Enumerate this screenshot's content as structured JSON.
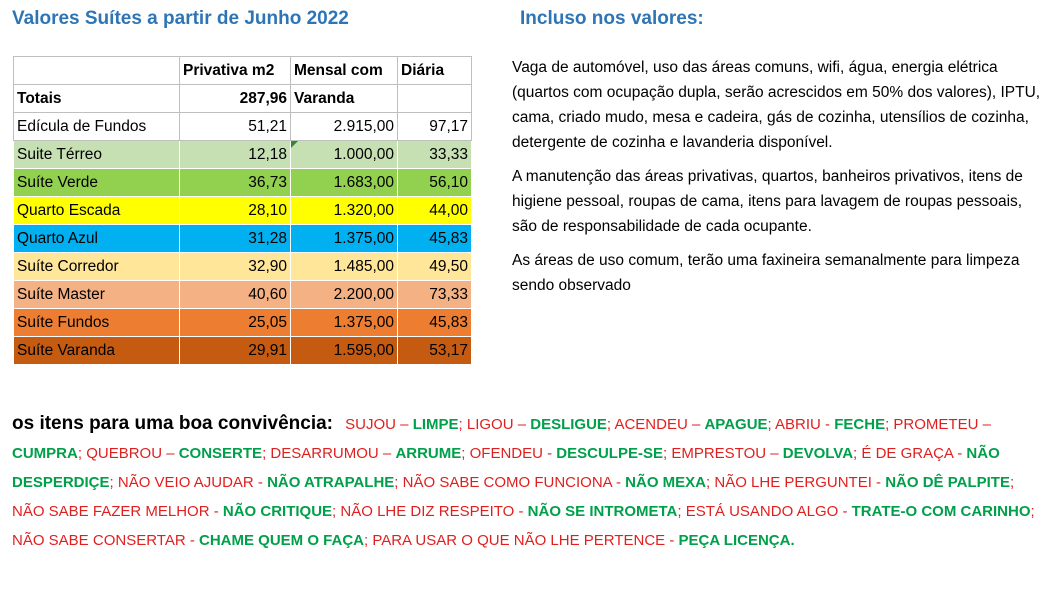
{
  "title_left": "Valores Suítes a partir de Junho 2022",
  "title_right": "Incluso nos valores:",
  "table": {
    "header": [
      "",
      "Privativa m2",
      "Mensal com",
      "Diária"
    ],
    "totals": [
      "Totais",
      "287,96",
      "Varanda",
      ""
    ],
    "rows": [
      {
        "name": "Edícula de Fundos",
        "area": "51,21",
        "monthly": "2.915,00",
        "daily": "97,17",
        "color": "#ffffff"
      },
      {
        "name": "Suite Térreo",
        "area": "12,18",
        "monthly": "1.000,00",
        "daily": "33,33",
        "color": "#c6e0b4"
      },
      {
        "name": "Suíte Verde",
        "area": "36,73",
        "monthly": "1.683,00",
        "daily": "56,10",
        "color": "#92d050"
      },
      {
        "name": "Quarto Escada",
        "area": "28,10",
        "monthly": "1.320,00",
        "daily": "44,00",
        "color": "#ffff00"
      },
      {
        "name": "Quarto Azul",
        "area": "31,28",
        "monthly": "1.375,00",
        "daily": "45,83",
        "color": "#00b0f0"
      },
      {
        "name": "Suíte Corredor",
        "area": "32,90",
        "monthly": "1.485,00",
        "daily": "49,50",
        "color": "#ffe699"
      },
      {
        "name": "Suíte Master",
        "area": "40,60",
        "monthly": "2.200,00",
        "daily": "73,33",
        "color": "#f4b183"
      },
      {
        "name": "Suíte Fundos",
        "area": "25,05",
        "monthly": "1.375,00",
        "daily": "45,83",
        "color": "#ed7d31"
      },
      {
        "name": "Suíte Varanda",
        "area": "29,91",
        "monthly": "1.595,00",
        "daily": "53,17",
        "color": "#c55a11"
      }
    ]
  },
  "paragraphs": [
    "Vaga de automóvel, uso das áreas comuns, wifi, água, energia elétrica (quartos com ocupação dupla, serão acrescidos em 50% dos valores), IPTU, cama, criado mudo, mesa e cadeira, gás de cozinha, utensílios de cozinha, detergente de cozinha e lavanderia disponível.",
    "A manutenção das áreas privativas, quartos, banheiros privativos, itens de higiene pessoal, roupas de cama, itens para lavagem de roupas pessoais, são de responsabilidade de cada ocupante.",
    "As áreas de uso comum, terão uma faxineira semanalmente para limpeza sendo observado"
  ],
  "rules_intro": "os itens para uma boa convivência:",
  "rules": [
    {
      "q": "SUJOU – ",
      "a": "LIMPE"
    },
    {
      "q": "LIGOU – ",
      "a": "DESLIGUE"
    },
    {
      "q": "ACENDEU – ",
      "a": "APAGUE"
    },
    {
      "q": "ABRIU - ",
      "a": "FECHE"
    },
    {
      "q": "PROMETEU – ",
      "a": "CUMPRA"
    },
    {
      "q": "QUEBROU – ",
      "a": "CONSERTE"
    },
    {
      "q": "DESARRUMOU – ",
      "a": "ARRUME"
    },
    {
      "q": "OFENDEU - ",
      "a": "DESCULPE-SE"
    },
    {
      "q": "EMPRESTOU – ",
      "a": "DEVOLVA"
    },
    {
      "q": "É DE GRAÇA - ",
      "a": "NÃO DESPERDIÇE"
    },
    {
      "q": "NÃO VEIO AJUDAR - ",
      "a": "NÃO ATRAPALHE"
    },
    {
      "q": "NÃO SABE COMO FUNCIONA - ",
      "a": "NÃO MEXA"
    },
    {
      "q": "NÃO LHE PERGUNTEI - ",
      "a": "NÃO DÊ PALPITE"
    },
    {
      "q": "NÃO SABE FAZER MELHOR - ",
      "a": "NÃO CRITIQUE"
    },
    {
      "q": "NÃO LHE DIZ RESPEITO - ",
      "a": "NÃO SE INTROMETA"
    },
    {
      "q": "ESTÁ USANDO ALGO - ",
      "a": "TRATE-O COM CARINHO"
    },
    {
      "q": "NÃO SABE CONSERTAR - ",
      "a": "CHAME QUEM O FAÇA"
    },
    {
      "q": "PARA USAR O QUE NÃO LHE PERTENCE - ",
      "a": "PEÇA LICENÇA."
    }
  ]
}
